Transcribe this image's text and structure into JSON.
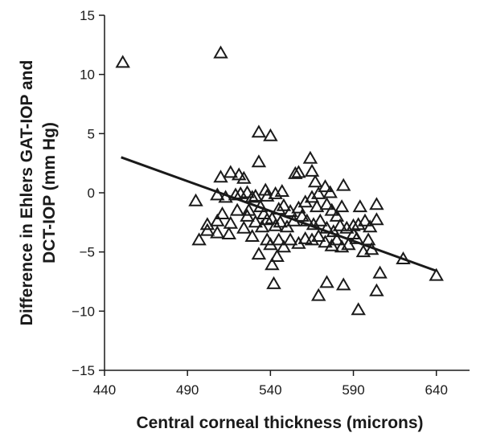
{
  "chart_data": {
    "type": "scatter",
    "title": "",
    "xlabel": "Central corneal thickness (microns)",
    "ylabel_lines": [
      "Difference in Ehlers GAT-IOP and",
      "DCT-IOP (mm Hg)"
    ],
    "xlim": [
      440,
      660
    ],
    "ylim": [
      -15,
      15
    ],
    "x_ticks": [
      440,
      490,
      540,
      590,
      640
    ],
    "y_ticks": [
      15,
      10,
      5,
      0,
      -5,
      -10,
      -15
    ],
    "y_tick_labels": [
      "15",
      "10",
      "5",
      "0",
      "−5",
      "−10",
      "−15"
    ],
    "grid": false,
    "legend": "none",
    "marker": "open-triangle",
    "color": "#1a1a1a",
    "trendline": {
      "x": [
        450,
        640
      ],
      "y": [
        3.0,
        -6.6
      ]
    },
    "points": [
      [
        451,
        11.0
      ],
      [
        510,
        11.8
      ],
      [
        533,
        5.1
      ],
      [
        540,
        4.8
      ],
      [
        533,
        2.6
      ],
      [
        564,
        2.9
      ],
      [
        510,
        1.3
      ],
      [
        516,
        1.7
      ],
      [
        524,
        1.2
      ],
      [
        521,
        1.5
      ],
      [
        495,
        -0.7
      ],
      [
        508,
        -0.2
      ],
      [
        513,
        -0.4
      ],
      [
        519,
        -0.2
      ],
      [
        522,
        -0.1
      ],
      [
        526,
        0.0
      ],
      [
        529,
        -0.4
      ],
      [
        531,
        -0.3
      ],
      [
        537,
        0.2
      ],
      [
        538,
        -0.3
      ],
      [
        543,
        -0.1
      ],
      [
        547,
        0.1
      ],
      [
        555,
        1.6
      ],
      [
        557,
        1.7
      ],
      [
        565,
        1.8
      ],
      [
        567,
        0.9
      ],
      [
        573,
        0.5
      ],
      [
        576,
        0.0
      ],
      [
        565,
        -0.4
      ],
      [
        569,
        -0.1
      ],
      [
        584,
        0.6
      ],
      [
        527,
        -1.5
      ],
      [
        534,
        -1.2
      ],
      [
        536,
        -1.8
      ],
      [
        541,
        -2.2
      ],
      [
        545,
        -1.4
      ],
      [
        548,
        -1.1
      ],
      [
        552,
        -1.6
      ],
      [
        557,
        -1.3
      ],
      [
        561,
        -0.8
      ],
      [
        568,
        -1.2
      ],
      [
        574,
        -1.0
      ],
      [
        577,
        -1.5
      ],
      [
        580,
        -2.0
      ],
      [
        583,
        -1.2
      ],
      [
        502,
        -2.7
      ],
      [
        508,
        -2.4
      ],
      [
        511,
        -1.8
      ],
      [
        516,
        -2.6
      ],
      [
        520,
        -1.5
      ],
      [
        526,
        -2.0
      ],
      [
        531,
        -2.5
      ],
      [
        535,
        -2.9
      ],
      [
        538,
        -2.3
      ],
      [
        543,
        -2.8
      ],
      [
        546,
        -2.5
      ],
      [
        550,
        -2.9
      ],
      [
        554,
        -2.4
      ],
      [
        559,
        -2.0
      ],
      [
        562,
        -2.4
      ],
      [
        566,
        -2.7
      ],
      [
        570,
        -2.4
      ],
      [
        574,
        -3.0
      ],
      [
        578,
        -3.3
      ],
      [
        582,
        -2.8
      ],
      [
        586,
        -3.0
      ],
      [
        590,
        -2.8
      ],
      [
        593,
        -2.7
      ],
      [
        597,
        -2.4
      ],
      [
        600,
        -2.9
      ],
      [
        594,
        -1.2
      ],
      [
        604,
        -1.0
      ],
      [
        604,
        -2.3
      ],
      [
        497,
        -4.0
      ],
      [
        502,
        -3.2
      ],
      [
        508,
        -3.4
      ],
      [
        515,
        -3.5
      ],
      [
        524,
        -3.0
      ],
      [
        529,
        -3.7
      ],
      [
        533,
        -5.2
      ],
      [
        538,
        -4.0
      ],
      [
        540,
        -4.4
      ],
      [
        545,
        -4.0
      ],
      [
        548,
        -4.6
      ],
      [
        552,
        -4.0
      ],
      [
        557,
        -4.3
      ],
      [
        561,
        -3.9
      ],
      [
        565,
        -4.0
      ],
      [
        569,
        -3.7
      ],
      [
        573,
        -4.2
      ],
      [
        577,
        -4.5
      ],
      [
        580,
        -4.0
      ],
      [
        583,
        -4.6
      ],
      [
        587,
        -4.4
      ],
      [
        590,
        -3.5
      ],
      [
        592,
        -3.9
      ],
      [
        596,
        -5.0
      ],
      [
        599,
        -4.0
      ],
      [
        601,
        -4.8
      ],
      [
        541,
        -6.1
      ],
      [
        544,
        -5.4
      ],
      [
        542,
        -7.7
      ],
      [
        569,
        -8.7
      ],
      [
        574,
        -7.6
      ],
      [
        584,
        -7.8
      ],
      [
        593,
        -9.9
      ],
      [
        604,
        -8.3
      ],
      [
        606,
        -6.8
      ],
      [
        620,
        -5.6
      ],
      [
        640,
        -7.0
      ]
    ]
  }
}
